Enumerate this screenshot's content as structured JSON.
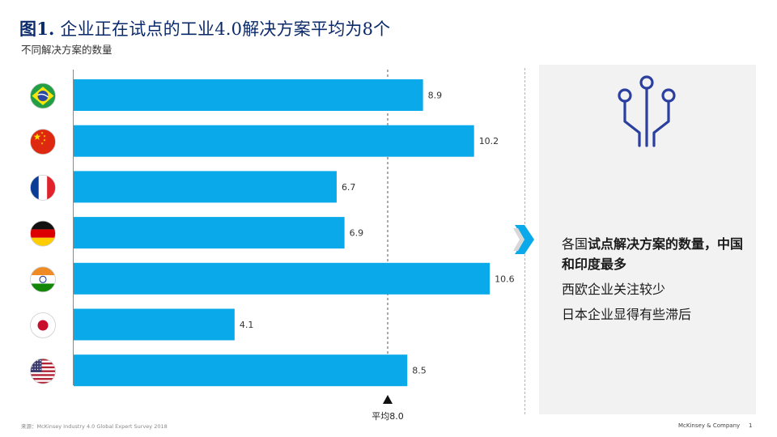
{
  "header": {
    "title_fig": "图1.",
    "title_text": " 企业正在试点的工业4.0解决方案平均为8个",
    "subtitle": "不同解决方案的数量"
  },
  "chart_data": {
    "type": "bar",
    "orientation": "horizontal",
    "categories": [
      "巴西",
      "中国",
      "法国",
      "德国",
      "印度",
      "日本",
      "美国"
    ],
    "category_icons": [
      "brazil-flag-icon",
      "china-flag-icon",
      "france-flag-icon",
      "germany-flag-icon",
      "india-flag-icon",
      "japan-flag-icon",
      "usa-flag-icon"
    ],
    "values": [
      8.9,
      10.2,
      6.7,
      6.9,
      10.6,
      4.1,
      8.5
    ],
    "value_labels": [
      "8.9",
      "10.2",
      "6.7",
      "6.9",
      "10.6",
      "4.1",
      "8.5"
    ],
    "average": 8.0,
    "average_label": "平均8.0",
    "xlim": [
      0,
      12
    ],
    "bar_color": "#0aa9ea",
    "grid": false
  },
  "panel": {
    "icon": "circuit-icon",
    "insight1_hl": "试点解决方案",
    "insight1_pre": "各国",
    "insight1_mid": "的数量，",
    "insight1_hl2": "中国和印度",
    "insight1_post": "最多",
    "insight2": "西欧企业关注较少",
    "insight3": "日本企业显得有些滞后"
  },
  "footer": {
    "source": "来源：McKinsey Industry 4.0 Global Expert Survey 2018",
    "brand": "McKinsey & Company",
    "page": "1"
  },
  "colors": {
    "title": "#0b2a6b",
    "bar": "#0aa9ea",
    "icon": "#2a3f9e",
    "panel": "#f2f2f2"
  }
}
